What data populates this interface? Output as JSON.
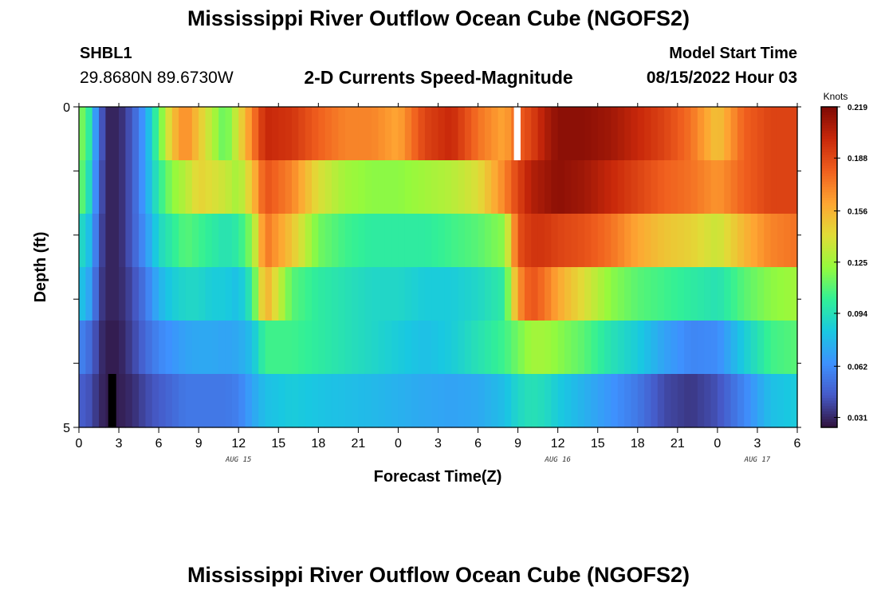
{
  "header": {
    "title": "Mississippi River Outflow Ocean Cube (NGOFS2)",
    "station_id": "SHBL1",
    "station_coords": "29.8680N  89.6730W",
    "subtitle": "2-D Currents Speed-Magnitude",
    "model_start_label": "Model Start Time",
    "model_start_value": "08/15/2022 Hour 03"
  },
  "footer": {
    "title": "Mississippi River Outflow Ocean Cube (NGOFS2)"
  },
  "chart_data": {
    "type": "heatmap",
    "title": "2-D Currents Speed-Magnitude",
    "xlabel": "Forecast Time(Z)",
    "ylabel": "Depth (ft)",
    "x_tick_labels": [
      "0",
      "3",
      "6",
      "9",
      "12",
      "15",
      "18",
      "21",
      "0",
      "3",
      "6",
      "9",
      "12",
      "15",
      "18",
      "21",
      "0",
      "3",
      "6"
    ],
    "x_range_hours": [
      0,
      54
    ],
    "date_labels": [
      {
        "label": "AUG 15",
        "hour": 12
      },
      {
        "label": "AUG 16",
        "hour": 36
      },
      {
        "label": "AUG 17",
        "hour": 51
      }
    ],
    "y_tick_labels": [
      "0",
      "5"
    ],
    "y_range": [
      0,
      5
    ],
    "colorbar": {
      "unit": "Knots",
      "ticks": [
        "0.031",
        "0.062",
        "0.094",
        "0.125",
        "0.156",
        "0.188",
        "0.219"
      ],
      "range": [
        0.025,
        0.219
      ]
    },
    "depth_layers": [
      {
        "keys_h": [
          0,
          0.5,
          1,
          1.5,
          2,
          3,
          4,
          5,
          6,
          7,
          8,
          9,
          10,
          11,
          12,
          13,
          14,
          16,
          18,
          20,
          22,
          24,
          26,
          28,
          30,
          32,
          33,
          34,
          35,
          36,
          38,
          40,
          42,
          44,
          46,
          48,
          50,
          52,
          54
        ],
        "keys_v": [
          0.11,
          0.12,
          0.08,
          0.055,
          0.03,
          0.03,
          0.045,
          0.07,
          0.11,
          0.15,
          0.17,
          0.15,
          0.13,
          0.11,
          0.14,
          0.17,
          0.2,
          0.195,
          0.18,
          0.17,
          0.17,
          0.16,
          0.19,
          0.2,
          0.175,
          0.16,
          0.18,
          0.19,
          0.205,
          0.215,
          0.215,
          0.21,
          0.2,
          0.19,
          0.175,
          0.15,
          0.18,
          0.19,
          0.19
        ]
      },
      {
        "keys_h": [
          0,
          0.5,
          1,
          1.5,
          2,
          3,
          4,
          5,
          6,
          7,
          8,
          9,
          10,
          11,
          12,
          13,
          14,
          16,
          18,
          20,
          22,
          24,
          26,
          28,
          30,
          32,
          33,
          34,
          35,
          36,
          38,
          40,
          42,
          44,
          46,
          48,
          50,
          52,
          54
        ],
        "keys_v": [
          0.11,
          0.11,
          0.075,
          0.05,
          0.03,
          0.03,
          0.045,
          0.07,
          0.1,
          0.12,
          0.13,
          0.145,
          0.14,
          0.135,
          0.125,
          0.15,
          0.185,
          0.17,
          0.14,
          0.125,
          0.12,
          0.12,
          0.125,
          0.13,
          0.14,
          0.17,
          0.19,
          0.205,
          0.21,
          0.215,
          0.21,
          0.2,
          0.19,
          0.18,
          0.175,
          0.165,
          0.18,
          0.19,
          0.19
        ]
      },
      {
        "keys_h": [
          0,
          0.5,
          1,
          1.5,
          2,
          3,
          4,
          5,
          6,
          7,
          8,
          9,
          10,
          11,
          12,
          13,
          14,
          16,
          18,
          20,
          22,
          24,
          26,
          28,
          30,
          32,
          33,
          34,
          35,
          36,
          38,
          40,
          42,
          44,
          46,
          48,
          50,
          52,
          54
        ],
        "keys_v": [
          0.09,
          0.09,
          0.07,
          0.045,
          0.03,
          0.03,
          0.045,
          0.065,
          0.09,
          0.1,
          0.11,
          0.105,
          0.1,
          0.095,
          0.1,
          0.12,
          0.175,
          0.15,
          0.115,
          0.105,
          0.1,
          0.1,
          0.1,
          0.105,
          0.11,
          0.12,
          0.185,
          0.195,
          0.195,
          0.19,
          0.185,
          0.175,
          0.16,
          0.15,
          0.145,
          0.135,
          0.155,
          0.17,
          0.175
        ]
      },
      {
        "keys_h": [
          0,
          0.5,
          1,
          1.5,
          2,
          3,
          4,
          5,
          6,
          7,
          8,
          9,
          10,
          11,
          12,
          13,
          14,
          16,
          18,
          20,
          22,
          24,
          26,
          28,
          30,
          32,
          33,
          34,
          35,
          36,
          38,
          40,
          42,
          44,
          46,
          48,
          50,
          52,
          54
        ],
        "keys_v": [
          0.08,
          0.08,
          0.062,
          0.04,
          0.03,
          0.03,
          0.04,
          0.055,
          0.075,
          0.085,
          0.09,
          0.09,
          0.085,
          0.085,
          0.08,
          0.1,
          0.16,
          0.11,
          0.1,
          0.095,
          0.09,
          0.09,
          0.085,
          0.085,
          0.09,
          0.1,
          0.165,
          0.185,
          0.175,
          0.16,
          0.14,
          0.12,
          0.11,
          0.105,
          0.1,
          0.095,
          0.11,
          0.12,
          0.125
        ]
      },
      {
        "keys_h": [
          0,
          0.5,
          1,
          1.5,
          2,
          3,
          4,
          5,
          6,
          7,
          8,
          9,
          10,
          11,
          12,
          13,
          14,
          16,
          18,
          20,
          22,
          24,
          26,
          28,
          30,
          32,
          33,
          34,
          35,
          36,
          38,
          40,
          42,
          44,
          46,
          48,
          50,
          52,
          54
        ],
        "keys_v": [
          0.06,
          0.055,
          0.048,
          0.035,
          0.028,
          0.028,
          0.038,
          0.05,
          0.06,
          0.065,
          0.07,
          0.072,
          0.072,
          0.07,
          0.072,
          0.08,
          0.105,
          0.105,
          0.1,
          0.095,
          0.09,
          0.085,
          0.08,
          0.085,
          0.095,
          0.105,
          0.115,
          0.125,
          0.125,
          0.12,
          0.11,
          0.095,
          0.085,
          0.07,
          0.06,
          0.062,
          0.085,
          0.105,
          0.11
        ]
      },
      {
        "keys_h": [
          0,
          0.5,
          1,
          1.5,
          2,
          3,
          4,
          5,
          6,
          7,
          8,
          9,
          10,
          11,
          12,
          13,
          14,
          16,
          18,
          20,
          22,
          24,
          26,
          28,
          30,
          32,
          33,
          34,
          35,
          36,
          38,
          40,
          42,
          44,
          46,
          48,
          50,
          52,
          54
        ],
        "keys_v": [
          0.045,
          0.045,
          0.04,
          0.032,
          0.028,
          0.028,
          0.032,
          0.04,
          0.045,
          0.05,
          0.055,
          0.055,
          0.055,
          0.055,
          0.058,
          0.07,
          0.08,
          0.085,
          0.082,
          0.08,
          0.078,
          0.075,
          0.072,
          0.07,
          0.072,
          0.08,
          0.09,
          0.095,
          0.092,
          0.085,
          0.075,
          0.065,
          0.055,
          0.04,
          0.035,
          0.042,
          0.06,
          0.08,
          0.085
        ]
      }
    ],
    "highlights": [
      {
        "layer": 0,
        "hour_from": 32.7,
        "hour_to": 33.2,
        "color": "#ffffff"
      },
      {
        "layer": 5,
        "hour_from": 2.2,
        "hour_to": 2.8,
        "color": "#000000"
      }
    ]
  }
}
